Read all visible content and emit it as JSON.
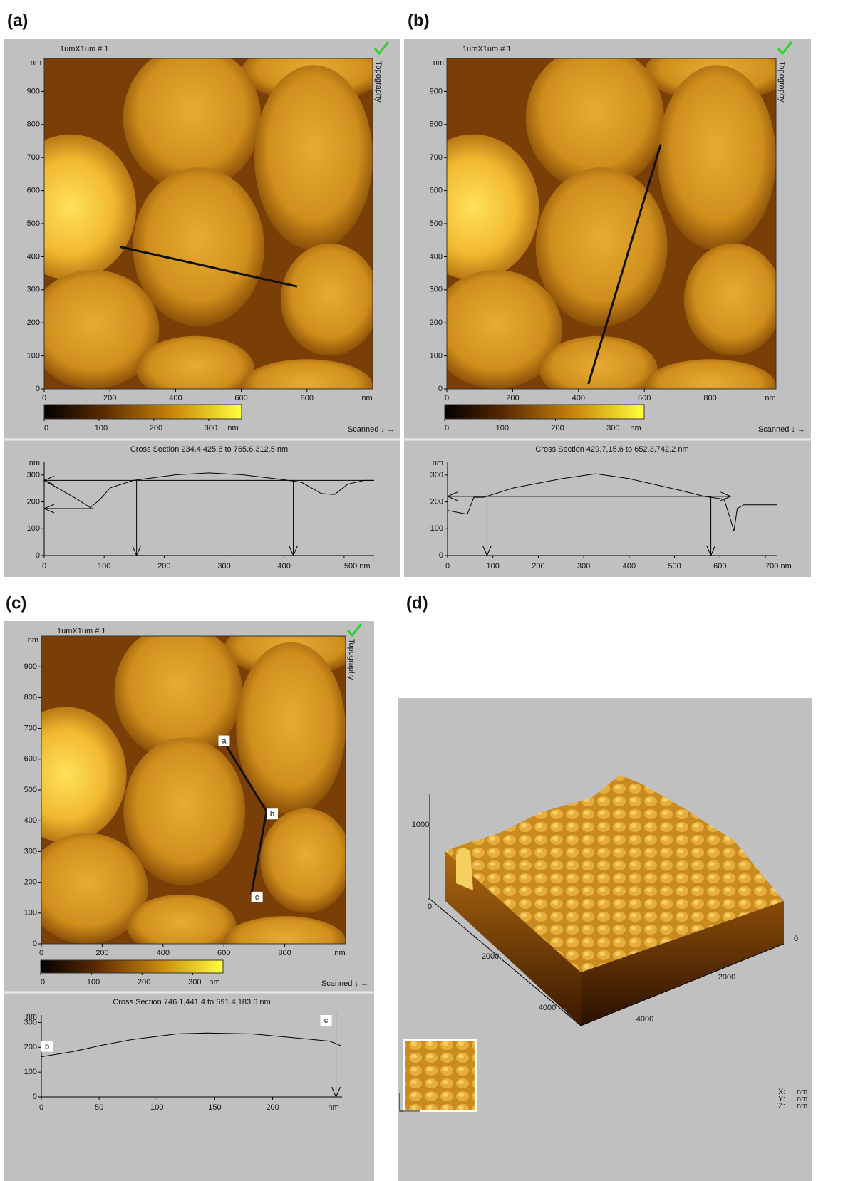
{
  "panels": [
    {
      "label": "(a)",
      "image_title": "1umX1um # 1",
      "channel": "Topography",
      "unit": "nm",
      "xlim": [
        0,
        1000
      ],
      "ylim": [
        0,
        1000
      ],
      "xticks": [
        0,
        200,
        400,
        600,
        800
      ],
      "yticks": [
        0,
        100,
        200,
        300,
        400,
        500,
        600,
        700,
        800,
        900
      ],
      "clim": [
        0,
        360
      ],
      "colorbar_ticks": [
        0,
        100,
        200,
        300
      ],
      "scan_note": "Scanned ↓ →",
      "cross_section": {
        "title": "Cross Section 234.4,425.8 to 765.6,312.5 nm",
        "unit": "nm",
        "xlim": [
          0,
          550
        ],
        "ylim": [
          0,
          350
        ],
        "xticks": [
          0,
          100,
          200,
          300,
          400,
          {
            "value": 500,
            "label": "500 nm"
          }
        ],
        "yticks": [
          0,
          100,
          200,
          300
        ]
      }
    },
    {
      "label": "(b)",
      "image_title": "1umX1um # 1",
      "channel": "Topography",
      "unit": "nm",
      "xlim": [
        0,
        1000
      ],
      "ylim": [
        0,
        1000
      ],
      "xticks": [
        0,
        200,
        400,
        600,
        800
      ],
      "yticks": [
        0,
        100,
        200,
        300,
        400,
        500,
        600,
        700,
        800,
        900
      ],
      "clim": [
        0,
        360
      ],
      "colorbar_ticks": [
        0,
        100,
        200,
        300
      ],
      "scan_note": "Scanned ↓ →",
      "cross_section": {
        "title": "Cross Section 429.7,15.6 to 652.3,742.2 nm",
        "unit": "nm",
        "xlim": [
          0,
          725
        ],
        "ylim": [
          0,
          350
        ],
        "xticks": [
          0,
          100,
          200,
          300,
          400,
          500,
          600,
          {
            "value": 700,
            "label": "700 nm"
          }
        ],
        "yticks": [
          0,
          100,
          200,
          300
        ]
      }
    },
    {
      "label": "(c)",
      "image_title": "1umX1um # 1",
      "channel": "Topography",
      "unit": "nm",
      "xlim": [
        0,
        1000
      ],
      "ylim": [
        0,
        1000
      ],
      "xticks": [
        0,
        200,
        400,
        600,
        800
      ],
      "yticks": [
        0,
        100,
        200,
        300,
        400,
        500,
        600,
        700,
        800,
        900
      ],
      "clim": [
        0,
        360
      ],
      "colorbar_ticks": [
        0,
        100,
        200,
        300
      ],
      "scan_note": "Scanned ↓ →",
      "markers": [
        "a",
        "b",
        "c"
      ],
      "cross_section": {
        "title": "Cross Section 746.1,441.4 to 691.4,183.6 nm",
        "unit": "nm",
        "xlim": [
          0,
          260
        ],
        "ylim": [
          0,
          330
        ],
        "xticks": [
          0,
          50,
          100,
          150,
          200
        ],
        "yticks": [
          0,
          100,
          200,
          300
        ],
        "markers": [
          "b",
          "c"
        ]
      }
    }
  ],
  "panel_d": {
    "label": "(d)",
    "z_ticks": [
      0,
      1000
    ],
    "left_ticks": [
      2000,
      4000
    ],
    "right_ticks": [
      0,
      2000,
      4000
    ],
    "readout": [
      {
        "axis": "X:",
        "unit": "nm"
      },
      {
        "axis": "Y:",
        "unit": "nm"
      },
      {
        "axis": "Z:",
        "unit": "nm"
      }
    ]
  }
}
